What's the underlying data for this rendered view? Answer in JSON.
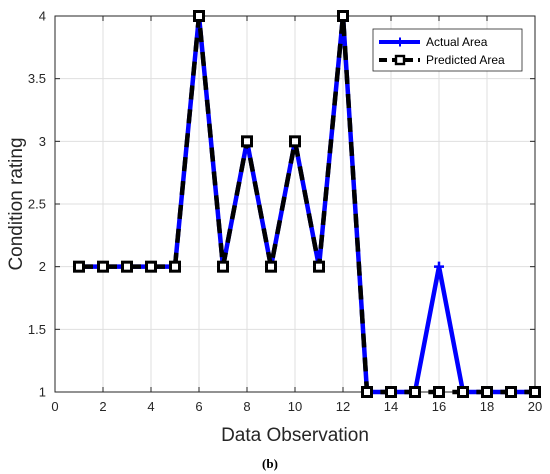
{
  "chart_data": {
    "type": "line",
    "xlabel": "Data Observation",
    "ylabel": "Condition rating",
    "xlim": [
      0,
      20
    ],
    "ylim": [
      1,
      4
    ],
    "xticks": [
      "0",
      "2",
      "4",
      "6",
      "8",
      "10",
      "12",
      "14",
      "16",
      "18",
      "20"
    ],
    "yticks": [
      "1",
      "1.5",
      "2",
      "2.5",
      "3",
      "3.5",
      "4"
    ],
    "grid": true,
    "legend_position": "top-right",
    "x": [
      1,
      2,
      3,
      4,
      5,
      6,
      7,
      8,
      9,
      10,
      11,
      12,
      13,
      14,
      15,
      16,
      17,
      18,
      19,
      20
    ],
    "series": [
      {
        "name": "Actual Area",
        "color": "#0000ff",
        "marker": "plus",
        "values": [
          2,
          2,
          2,
          2,
          2,
          4,
          2,
          3,
          2,
          3,
          2,
          4,
          1,
          1,
          1,
          2,
          1,
          1,
          1,
          1
        ]
      },
      {
        "name": "Predicted Area",
        "color": "#000000",
        "marker": "square",
        "dashed": true,
        "values": [
          2,
          2,
          2,
          2,
          2,
          4,
          2,
          3,
          2,
          3,
          2,
          4,
          1,
          1,
          1,
          1,
          1,
          1,
          1,
          1
        ]
      }
    ]
  },
  "caption": "(b)"
}
